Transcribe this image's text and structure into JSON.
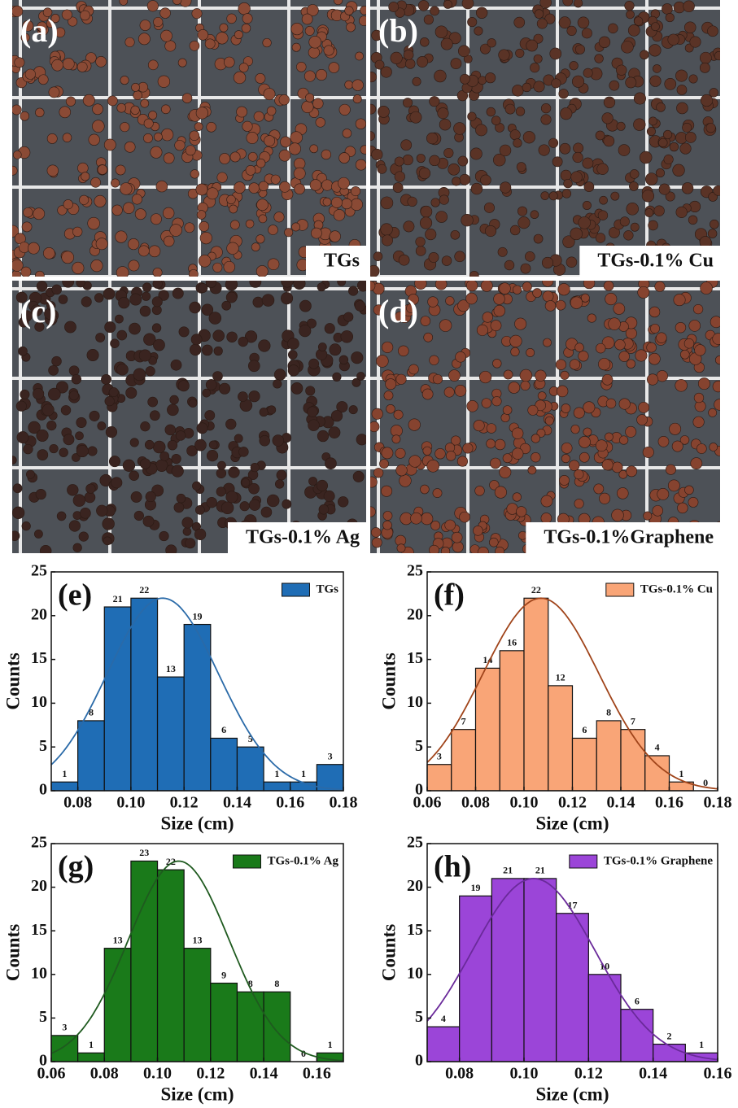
{
  "photos": [
    {
      "label": "(a)",
      "caption": "TGs",
      "dot_color": "#8a4a35"
    },
    {
      "label": "(b)",
      "caption": "TGs-0.1% Cu",
      "dot_color": "#5a3326"
    },
    {
      "label": "(c)",
      "caption": "TGs-0.1% Ag",
      "dot_color": "#3a2420"
    },
    {
      "label": "(d)",
      "caption": "TGs-0.1%Graphene",
      "dot_color": "#86432f"
    }
  ],
  "chart_data": [
    {
      "type": "histogram",
      "panel": "(e)",
      "xlabel": "Size (cm)",
      "ylabel": "Counts",
      "bins": [
        0.07,
        0.08,
        0.09,
        0.1,
        0.11,
        0.12,
        0.13,
        0.14,
        0.15,
        0.16,
        0.17,
        0.18
      ],
      "series": [
        {
          "name": "TGs",
          "color": "#1f6db5",
          "values": [
            1,
            8,
            21,
            22,
            13,
            19,
            6,
            5,
            1,
            1,
            3
          ]
        }
      ],
      "fit": {
        "center": 0.112,
        "width": 0.021,
        "height": 22,
        "color": "#2a6aa8"
      },
      "xlim": [
        0.07,
        0.18
      ],
      "xticks": [
        0.08,
        {
          "value": 0.1,
          "label": "0.10"
        },
        0.12,
        0.14,
        0.16,
        0.18
      ],
      "ylim": [
        0,
        25
      ],
      "yticks": [
        0,
        5,
        10,
        15,
        20,
        25
      ],
      "legend": "upper right"
    },
    {
      "type": "histogram",
      "panel": "(f)",
      "xlabel": "Size (cm)",
      "ylabel": "Counts",
      "bins": [
        0.06,
        0.07,
        0.08,
        0.09,
        0.1,
        0.11,
        0.12,
        0.13,
        0.14,
        0.15,
        0.16,
        0.17,
        0.18
      ],
      "series": [
        {
          "name": "TGs-0.1% Cu",
          "color": "#f9a577",
          "values": [
            3,
            7,
            14,
            16,
            22,
            12,
            6,
            8,
            7,
            4,
            1,
            0
          ]
        }
      ],
      "fit": {
        "center": 0.107,
        "width": 0.024,
        "height": 22,
        "color": "#a0441a"
      },
      "xlim": [
        0.06,
        0.18
      ],
      "xticks": [
        0.06,
        0.08,
        {
          "value": 0.1,
          "label": "0.10"
        },
        0.12,
        0.14,
        0.16,
        0.18
      ],
      "ylim": [
        0,
        25
      ],
      "yticks": [
        0,
        5,
        10,
        15,
        20,
        25
      ],
      "legend": "upper right"
    },
    {
      "type": "histogram",
      "panel": "(g)",
      "xlabel": "Size (cm)",
      "ylabel": "Counts",
      "bins": [
        0.06,
        0.07,
        0.08,
        0.09,
        0.1,
        0.11,
        0.12,
        0.13,
        0.14,
        0.15,
        0.16,
        0.17
      ],
      "series": [
        {
          "name": "TGs-0.1% Ag",
          "color": "#1a7a1a",
          "values": [
            3,
            1,
            13,
            23,
            22,
            13,
            9,
            8,
            8,
            0,
            1
          ]
        }
      ],
      "fit": {
        "center": 0.108,
        "width": 0.019,
        "height": 23,
        "color": "#1f5a1f"
      },
      "xlim": [
        0.06,
        0.17
      ],
      "xticks": [
        0.06,
        0.08,
        {
          "value": 0.1,
          "label": "0.10"
        },
        0.12,
        0.14,
        0.16
      ],
      "ylim": [
        0,
        25
      ],
      "yticks": [
        0,
        5,
        10,
        15,
        20,
        25
      ],
      "legend": "upper right"
    },
    {
      "type": "histogram",
      "panel": "(h)",
      "xlabel": "Size (cm)",
      "ylabel": "Counts",
      "bins": [
        0.07,
        0.08,
        0.09,
        0.1,
        0.11,
        0.12,
        0.13,
        0.14,
        0.15,
        0.16
      ],
      "series": [
        {
          "name": "TGs-0.1% Graphene",
          "color": "#9b45d8",
          "values": [
            4,
            19,
            21,
            21,
            17,
            10,
            6,
            2,
            1
          ]
        }
      ],
      "fit": {
        "center": 0.103,
        "width": 0.019,
        "height": 21,
        "color": "#6a2a9a"
      },
      "xlim": [
        0.07,
        0.16
      ],
      "xticks": [
        0.08,
        {
          "value": 0.1,
          "label": "0.10"
        },
        0.12,
        0.14,
        0.16
      ],
      "ylim": [
        0,
        25
      ],
      "yticks": [
        0,
        5,
        10,
        15,
        20,
        25
      ],
      "legend": "upper right"
    }
  ]
}
